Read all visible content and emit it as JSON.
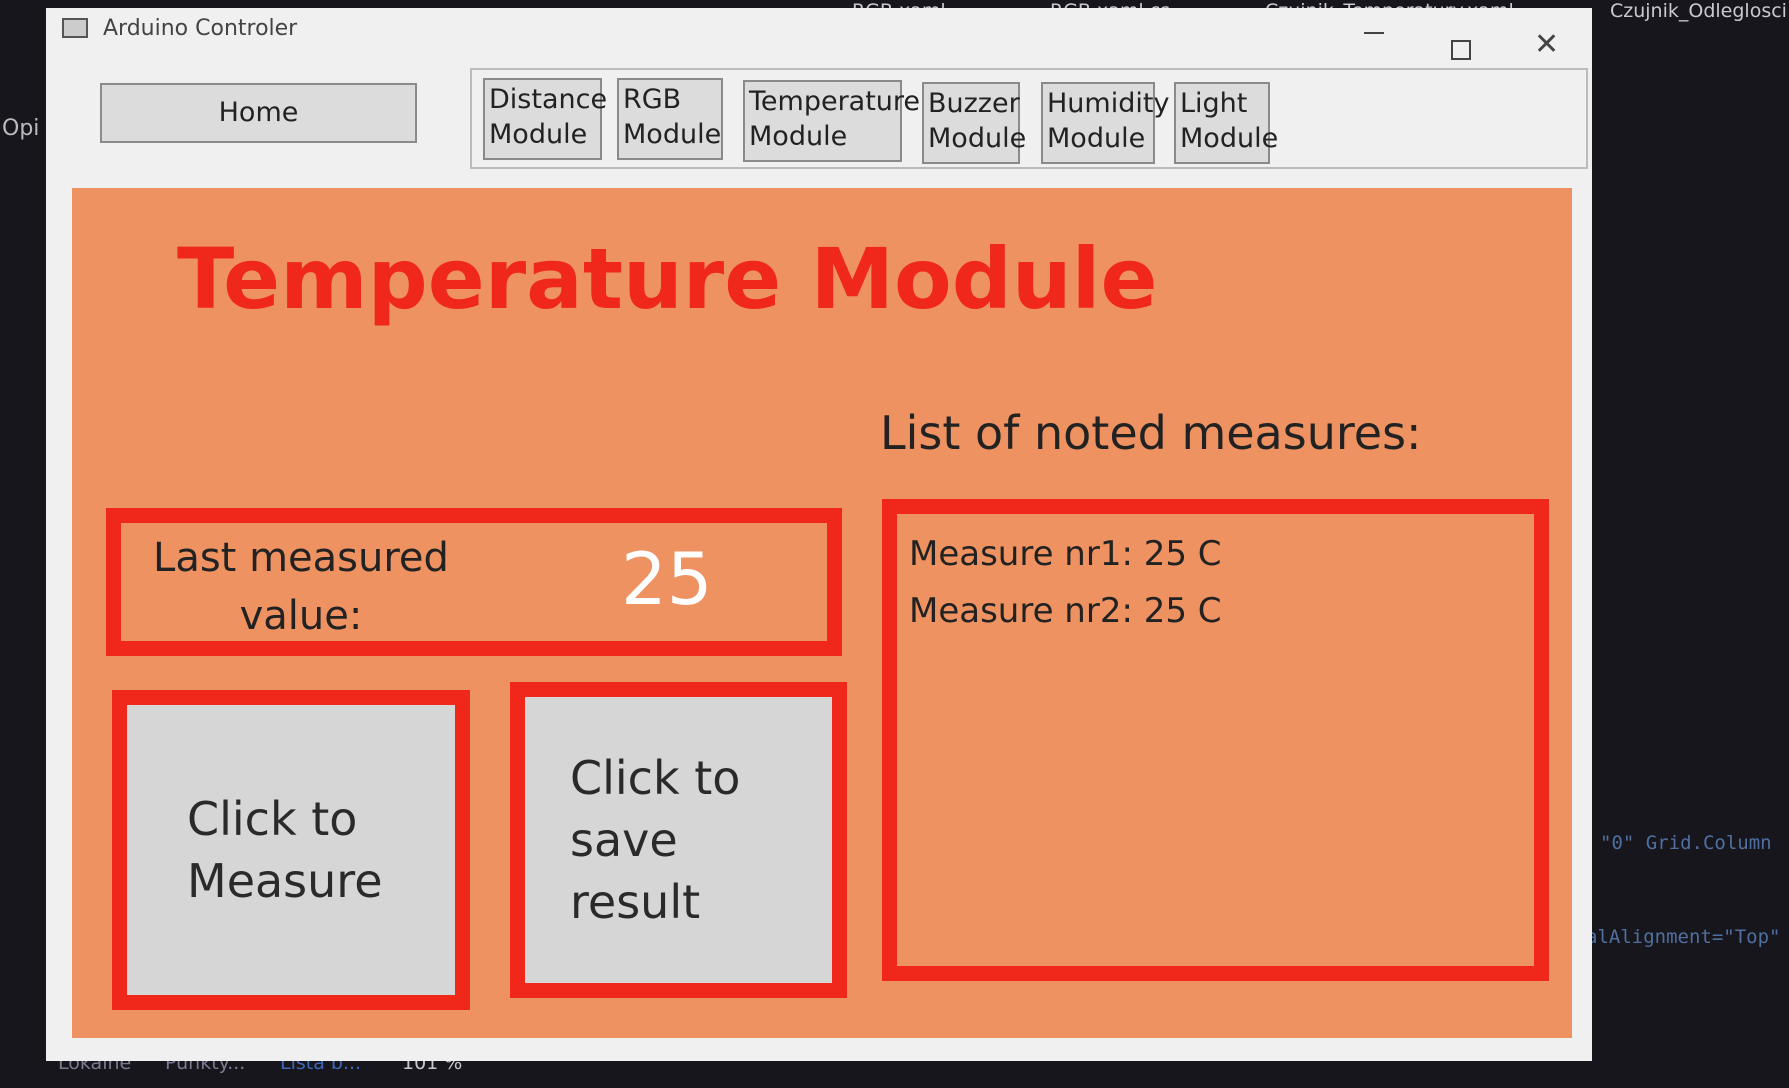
{
  "window": {
    "title": "Arduino Controler"
  },
  "nav": {
    "home": "Home",
    "modules": [
      "Distance Module",
      "RGB Module",
      "Temperature Module",
      "Buzzer Module",
      "Humidity Module",
      "Light Module"
    ]
  },
  "page": {
    "heading": "Temperature Module",
    "list_label": "List of noted measures:",
    "last_label": "Last measured value:",
    "last_value": 25,
    "measure_button": "Click to Measure",
    "save_button": "Click to save result",
    "measures": [
      "Measure nr1: 25 C",
      "Measure nr2: 25 C"
    ]
  },
  "background": {
    "tabs": [
      "RGB.xaml",
      "RGB.xaml.cs",
      "Czujnik_Temperatury.xaml",
      "Czujnik_Odleglosci"
    ],
    "side": "Opi",
    "code": [
      "\"0\" Grid.Column",
      "alAlignment=\"Top\""
    ],
    "status": [
      "Lokalne",
      "Punkty...",
      "Lista b...",
      "101 %"
    ]
  }
}
